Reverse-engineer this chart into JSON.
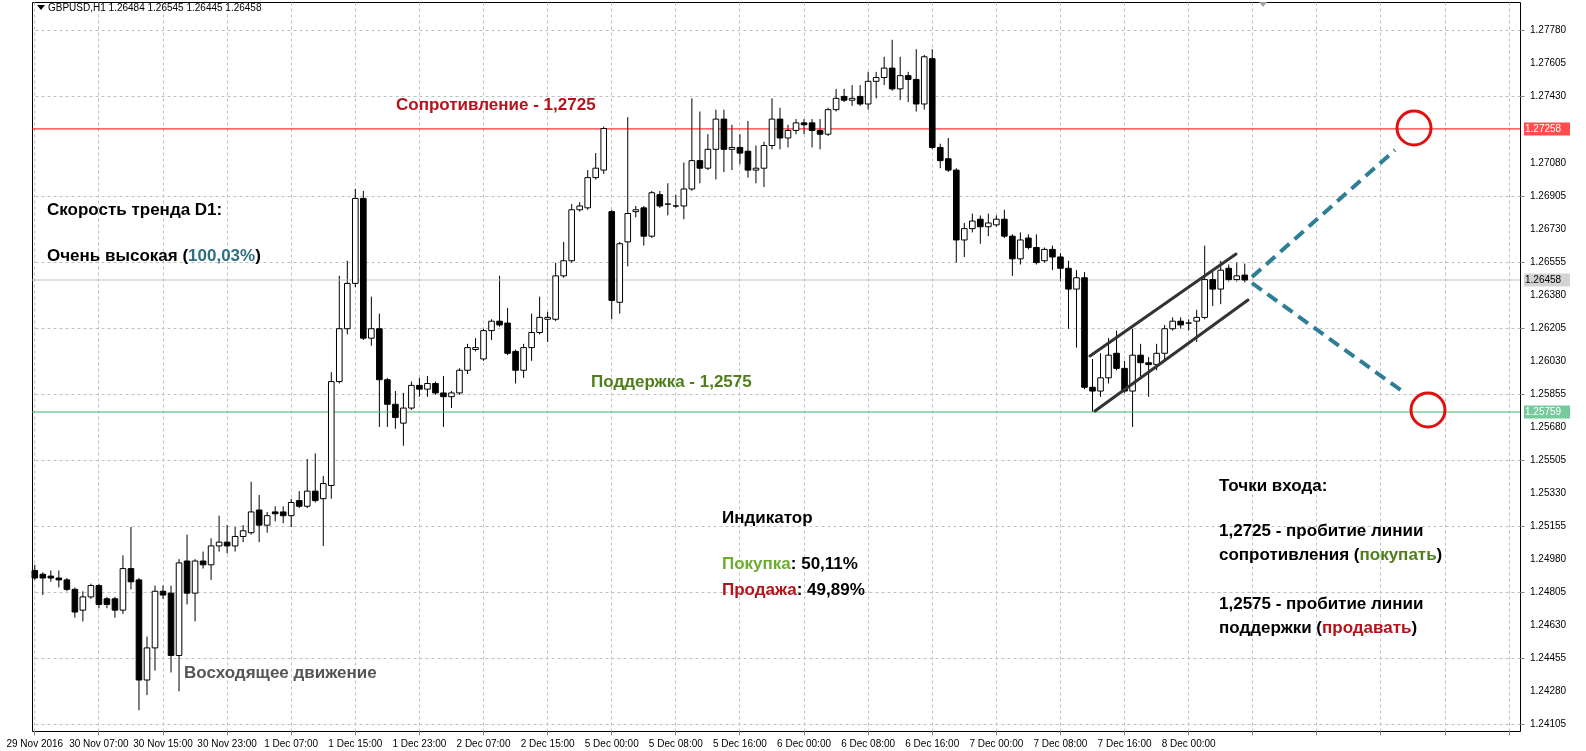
{
  "chart_data": {
    "type": "candlestick",
    "title": "GBPUSD,H1  1.26484 1.26545 1.26445 1.26458",
    "categories": [
      "29 Nov 2016",
      null,
      null,
      null,
      null,
      null,
      null,
      null,
      "30 Nov 07:00",
      null,
      null,
      null,
      null,
      null,
      null,
      null,
      "30 Nov 15:00",
      null,
      null,
      null,
      null,
      null,
      null,
      null,
      "30 Nov 23:00",
      null,
      null,
      null,
      null,
      null,
      null,
      null,
      "1 Dec 07:00",
      null,
      null,
      null,
      null,
      null,
      null,
      null,
      "1 Dec 15:00",
      null,
      null,
      null,
      null,
      null,
      null,
      null,
      "1 Dec 23:00",
      null,
      null,
      null,
      null,
      null,
      null,
      null,
      "2 Dec 07:00",
      null,
      null,
      null,
      null,
      null,
      null,
      null,
      "2 Dec 15:00",
      null,
      null,
      null,
      null,
      null,
      null,
      null,
      "5 Dec 00:00",
      null,
      null,
      null,
      null,
      null,
      null,
      null,
      "5 Dec 08:00",
      null,
      null,
      null,
      null,
      null,
      null,
      null,
      "5 Dec 16:00",
      null,
      null,
      null,
      null,
      null,
      null,
      null,
      "6 Dec 00:00",
      null,
      null,
      null,
      null,
      null,
      null,
      null,
      "6 Dec 08:00",
      null,
      null,
      null,
      null,
      null,
      null,
      null,
      "6 Dec 16:00",
      null,
      null,
      null,
      null,
      null,
      null,
      null,
      "7 Dec 00:00",
      null,
      null,
      null,
      null,
      null,
      null,
      null,
      "7 Dec 08:00",
      null,
      null,
      null,
      null,
      null,
      null,
      null,
      "7 Dec 16:00",
      null,
      null,
      null,
      null,
      null,
      null,
      null,
      "8 Dec 00:00",
      null,
      null,
      null,
      null,
      null,
      null,
      null,
      null,
      null,
      null,
      null,
      null,
      null,
      null,
      null,
      null,
      null,
      null,
      null,
      null,
      null,
      null,
      null,
      null,
      null,
      null,
      null,
      null,
      null,
      null,
      null,
      null,
      null,
      null,
      null,
      null,
      null,
      null,
      null,
      null,
      null
    ],
    "ohlc": [
      [
        1.2492,
        1.2495,
        1.2487,
        1.2488
      ],
      [
        1.249,
        1.2491,
        1.2479,
        1.2488
      ],
      [
        1.2489,
        1.2492,
        1.2486,
        1.2488
      ],
      [
        1.2488,
        1.2492,
        1.2483,
        1.2487
      ],
      [
        1.2487,
        1.2488,
        1.2481,
        1.2482
      ],
      [
        1.2482,
        1.2483,
        1.2467,
        1.247
      ],
      [
        1.2471,
        1.2481,
        1.2465,
        1.2478
      ],
      [
        1.2478,
        1.2485,
        1.2477,
        1.2484
      ],
      [
        1.2484,
        1.2485,
        1.2472,
        1.2474
      ],
      [
        1.2477,
        1.2478,
        1.2472,
        1.2474
      ],
      [
        1.2477,
        1.2478,
        1.2467,
        1.2471
      ],
      [
        1.2471,
        1.25,
        1.2469,
        1.2493
      ],
      [
        1.2493,
        1.2515,
        1.2482,
        1.2486
      ],
      [
        1.2487,
        1.2488,
        1.2418,
        1.2434
      ],
      [
        1.2434,
        1.2457,
        1.2426,
        1.2451
      ],
      [
        1.2451,
        1.2484,
        1.2439,
        1.2481
      ],
      [
        1.2481,
        1.2484,
        1.2477,
        1.2479
      ],
      [
        1.248,
        1.2484,
        1.2438,
        1.2447
      ],
      [
        1.2447,
        1.2498,
        1.2428,
        1.2496
      ],
      [
        1.2497,
        1.2511,
        1.2474,
        1.248
      ],
      [
        1.248,
        1.2498,
        1.2465,
        1.2497
      ],
      [
        1.2497,
        1.2502,
        1.2493,
        1.2495
      ],
      [
        1.2495,
        1.2509,
        1.2487,
        1.2505
      ],
      [
        1.2505,
        1.2521,
        1.2502,
        1.2507
      ],
      [
        1.2507,
        1.2516,
        1.2501,
        1.2505
      ],
      [
        1.2505,
        1.2515,
        1.2502,
        1.251
      ],
      [
        1.251,
        1.2516,
        1.2507,
        1.2513
      ],
      [
        1.2512,
        1.2539,
        1.2511,
        1.2523
      ],
      [
        1.2524,
        1.2532,
        1.2507,
        1.2516
      ],
      [
        1.2516,
        1.2523,
        1.2512,
        1.2521
      ],
      [
        1.2523,
        1.2526,
        1.2518,
        1.2522
      ],
      [
        1.2523,
        1.2526,
        1.2517,
        1.2521
      ],
      [
        1.2521,
        1.253,
        1.2515,
        1.2528
      ],
      [
        1.2529,
        1.2534,
        1.2525,
        1.2526
      ],
      [
        1.2526,
        1.2551,
        1.2525,
        1.2534
      ],
      [
        1.2534,
        1.2554,
        1.2528,
        1.2529
      ],
      [
        1.253,
        1.2542,
        1.2505,
        1.2538
      ],
      [
        1.2537,
        1.2597,
        1.253,
        1.2592
      ],
      [
        1.2592,
        1.2648,
        1.2591,
        1.262
      ],
      [
        1.262,
        1.2656,
        1.2617,
        1.2644
      ],
      [
        1.2644,
        1.2694,
        1.2642,
        1.2689
      ],
      [
        1.2689,
        1.2693,
        1.2614,
        1.2615
      ],
      [
        1.2615,
        1.2637,
        1.2611,
        1.262
      ],
      [
        1.262,
        1.2628,
        1.2568,
        1.2593
      ],
      [
        1.2593,
        1.2594,
        1.2568,
        1.258
      ],
      [
        1.258,
        1.2587,
        1.2567,
        1.2573
      ],
      [
        1.257,
        1.2586,
        1.2558,
        1.2578
      ],
      [
        1.2578,
        1.2592,
        1.2577,
        1.259
      ],
      [
        1.259,
        1.2594,
        1.2584,
        1.2588
      ],
      [
        1.2588,
        1.2595,
        1.2584,
        1.2591
      ],
      [
        1.2591,
        1.2592,
        1.2585,
        1.2586
      ],
      [
        1.2586,
        1.2595,
        1.2568,
        1.2584
      ],
      [
        1.2584,
        1.2587,
        1.2578,
        1.2586
      ],
      [
        1.2586,
        1.2599,
        1.2585,
        1.2598
      ],
      [
        1.2598,
        1.2612,
        1.2596,
        1.261
      ],
      [
        1.2609,
        1.2615,
        1.2608,
        1.261
      ],
      [
        1.2604,
        1.262,
        1.2603,
        1.2619
      ],
      [
        1.2619,
        1.2625,
        1.2614,
        1.2624
      ],
      [
        1.2624,
        1.2648,
        1.2621,
        1.2622
      ],
      [
        1.2623,
        1.2631,
        1.2606,
        1.2607
      ],
      [
        1.2608,
        1.2609,
        1.2591,
        1.2598
      ],
      [
        1.2598,
        1.2612,
        1.2594,
        1.261
      ],
      [
        1.261,
        1.2628,
        1.2603,
        1.2618
      ],
      [
        1.2618,
        1.2637,
        1.2617,
        1.2626
      ],
      [
        1.2625,
        1.2629,
        1.2613,
        1.2626
      ],
      [
        1.2625,
        1.2655,
        1.2624,
        1.2648
      ],
      [
        1.2648,
        1.2666,
        1.2647,
        1.2656
      ],
      [
        1.2656,
        1.2686,
        1.2655,
        1.2683
      ],
      [
        1.2683,
        1.2687,
        1.2682,
        1.2685
      ],
      [
        1.2684,
        1.2704,
        1.2683,
        1.27
      ],
      [
        1.27,
        1.2713,
        1.2699,
        1.2705
      ],
      [
        1.2704,
        1.2727,
        1.2702,
        1.2726
      ],
      [
        1.2682,
        1.2683,
        1.2625,
        1.2635
      ],
      [
        1.2634,
        1.2666,
        1.2628,
        1.2665
      ],
      [
        1.2666,
        1.2732,
        1.2653,
        1.2681
      ],
      [
        1.2682,
        1.2685,
        1.2679,
        1.2683
      ],
      [
        1.2684,
        1.2685,
        1.2664,
        1.2669
      ],
      [
        1.2669,
        1.2693,
        1.2668,
        1.2692
      ],
      [
        1.2691,
        1.2693,
        1.2684,
        1.2685
      ],
      [
        1.2686,
        1.2697,
        1.268,
        1.2686
      ],
      [
        1.2685,
        1.2691,
        1.2684,
        1.2685
      ],
      [
        1.2685,
        1.2708,
        1.2678,
        1.2694
      ],
      [
        1.2694,
        1.2742,
        1.2693,
        1.2709
      ],
      [
        1.2709,
        1.2735,
        1.2697,
        1.2705
      ],
      [
        1.2705,
        1.2723,
        1.2704,
        1.2715
      ],
      [
        1.2715,
        1.2736,
        1.2699,
        1.2731
      ],
      [
        1.2731,
        1.2736,
        1.2703,
        1.2715
      ],
      [
        1.2715,
        1.2728,
        1.2704,
        1.2716
      ],
      [
        1.2716,
        1.2723,
        1.2707,
        1.2713
      ],
      [
        1.2714,
        1.273,
        1.27,
        1.2704
      ],
      [
        1.2704,
        1.2717,
        1.2697,
        1.2705
      ],
      [
        1.2705,
        1.2719,
        1.2695,
        1.2717
      ],
      [
        1.2717,
        1.2742,
        1.2715,
        1.2731
      ],
      [
        1.2731,
        1.2737,
        1.2715,
        1.2721
      ],
      [
        1.2721,
        1.2728,
        1.2716,
        1.2725
      ],
      [
        1.2725,
        1.2731,
        1.2723,
        1.2729
      ],
      [
        1.2729,
        1.2731,
        1.2723,
        1.2728
      ],
      [
        1.2729,
        1.2731,
        1.2716,
        1.2725
      ],
      [
        1.2725,
        1.2731,
        1.2715,
        1.2723
      ],
      [
        1.2723,
        1.2737,
        1.2722,
        1.2736
      ],
      [
        1.2736,
        1.2747,
        1.2735,
        1.2742
      ],
      [
        1.2743,
        1.2747,
        1.274,
        1.2741
      ],
      [
        1.2741,
        1.2749,
        1.2738,
        1.2742
      ],
      [
        1.2743,
        1.2749,
        1.2738,
        1.2739
      ],
      [
        1.2739,
        1.2756,
        1.2736,
        1.2751
      ],
      [
        1.2751,
        1.2756,
        1.2742,
        1.2753
      ],
      [
        1.2753,
        1.2764,
        1.2749,
        1.2758
      ],
      [
        1.2758,
        1.2773,
        1.2746,
        1.2747
      ],
      [
        1.2747,
        1.2764,
        1.2741,
        1.2754
      ],
      [
        1.2754,
        1.2756,
        1.274,
        1.2752
      ],
      [
        1.2752,
        1.2768,
        1.2735,
        1.2739
      ],
      [
        1.2739,
        1.2765,
        1.2736,
        1.2764
      ],
      [
        1.2763,
        1.2768,
        1.2715,
        1.2716
      ],
      [
        1.2716,
        1.2718,
        1.2705,
        1.2709
      ],
      [
        1.271,
        1.2721,
        1.2703,
        1.2704
      ],
      [
        1.2704,
        1.2705,
        1.2655,
        1.2667
      ],
      [
        1.2667,
        1.2676,
        1.2658,
        1.2673
      ],
      [
        1.2673,
        1.2681,
        1.2671,
        1.2677
      ],
      [
        1.2678,
        1.268,
        1.2665,
        1.2674
      ],
      [
        1.2674,
        1.2681,
        1.2669,
        1.2676
      ],
      [
        1.2675,
        1.268,
        1.2674,
        1.2678
      ],
      [
        1.2678,
        1.2683,
        1.2668,
        1.2669
      ],
      [
        1.2669,
        1.267,
        1.2648,
        1.2657
      ],
      [
        1.2657,
        1.2671,
        1.2654,
        1.2667
      ],
      [
        1.2668,
        1.267,
        1.2662,
        1.2663
      ],
      [
        1.2663,
        1.267,
        1.2654,
        1.2655
      ],
      [
        1.2656,
        1.2663,
        1.2655,
        1.2662
      ],
      [
        1.2662,
        1.2664,
        1.2651,
        1.2658
      ],
      [
        1.2658,
        1.266,
        1.2645,
        1.2652
      ],
      [
        1.2652,
        1.2656,
        1.262,
        1.2641
      ],
      [
        1.2641,
        1.2651,
        1.261,
        1.2647
      ],
      [
        1.2647,
        1.265,
        1.2588,
        1.2589
      ],
      [
        1.2589,
        1.2604,
        1.2576,
        1.2587
      ],
      [
        1.2587,
        1.2607,
        1.2584,
        1.2594
      ],
      [
        1.2594,
        1.2615,
        1.2591,
        1.2606
      ],
      [
        1.2607,
        1.2619,
        1.2598,
        1.2599
      ],
      [
        1.2599,
        1.2603,
        1.2586,
        1.2587
      ],
      [
        1.2587,
        1.262,
        1.2568,
        1.2606
      ],
      [
        1.2606,
        1.2612,
        1.2594,
        1.2602
      ],
      [
        1.2602,
        1.2605,
        1.2584,
        1.2601
      ],
      [
        1.2601,
        1.2612,
        1.2598,
        1.2607
      ],
      [
        1.2607,
        1.2622,
        1.2603,
        1.262
      ],
      [
        1.262,
        1.2626,
        1.2619,
        1.2624
      ],
      [
        1.2624,
        1.2626,
        1.262,
        1.2622
      ],
      [
        1.2623,
        1.2625,
        1.2619,
        1.2623
      ],
      [
        1.2624,
        1.263,
        1.2613,
        1.2626
      ],
      [
        1.2626,
        1.2664,
        1.2625,
        1.2646
      ],
      [
        1.2646,
        1.265,
        1.2632,
        1.2641
      ],
      [
        1.2641,
        1.2656,
        1.2633,
        1.2651
      ],
      [
        1.2652,
        1.2654,
        1.2645,
        1.2646
      ],
      [
        1.2646,
        1.2655,
        1.2645,
        1.2648
      ],
      [
        1.26484,
        1.26545,
        1.26445,
        1.26458
      ],
      null,
      null,
      null,
      null,
      null,
      null,
      null,
      null,
      null,
      null,
      null,
      null,
      null,
      null,
      null,
      null,
      null,
      null,
      null,
      null,
      null,
      null,
      null,
      null,
      null,
      null,
      null,
      null,
      null,
      null,
      null,
      null,
      null,
      null
    ],
    "ylim": [
      1.2407,
      1.2793
    ],
    "yticks": [
      {
        "value": 1.2778,
        "label": "1.27780"
      },
      1.27605,
      {
        "value": 1.2743,
        "label": "1.27430"
      },
      {
        "value": 1.2708,
        "label": "1.27080"
      },
      1.26905,
      {
        "value": 1.2673,
        "label": "1.26730"
      },
      1.26555,
      {
        "value": 1.2638,
        "label": "1.26380"
      },
      1.26205,
      {
        "value": 1.2603,
        "label": "1.26030"
      },
      1.25855,
      {
        "value": 1.2568,
        "label": "1.25680"
      },
      1.25505,
      {
        "value": 1.2533,
        "label": "1.25330"
      },
      1.25155,
      {
        "value": 1.2498,
        "label": "1.24980"
      },
      1.24805,
      {
        "value": 1.2463,
        "label": "1.24630"
      },
      1.24455,
      {
        "value": 1.2428,
        "label": "1.24280"
      },
      1.24105
    ],
    "grid": true,
    "ref_lines": [
      {
        "axis": "y",
        "value": 1.27258,
        "label": "1.27258",
        "color": "#ff0000"
      },
      {
        "axis": "y",
        "value": 1.25759,
        "label": "1.25759",
        "color": "#3cb371"
      },
      {
        "axis": "y",
        "value": 1.26458,
        "label": "1.26458",
        "color": "#c0c0c0"
      }
    ],
    "annotations": [
      "Сопротивление - 1,2725",
      "Поддержка - 1,2575",
      "Скорость тренда D1:",
      "Очень высокая (100,03%)",
      "Восходящее движение",
      "Индикатор",
      "Покупка: 50,11%",
      "Продажа: 49,89%",
      "Точки входа:",
      "1,2725 - пробитие линии\nсопротивления (покупать)",
      "1,2575 - пробитие линии\nподдержки (продавать)"
    ]
  }
}
